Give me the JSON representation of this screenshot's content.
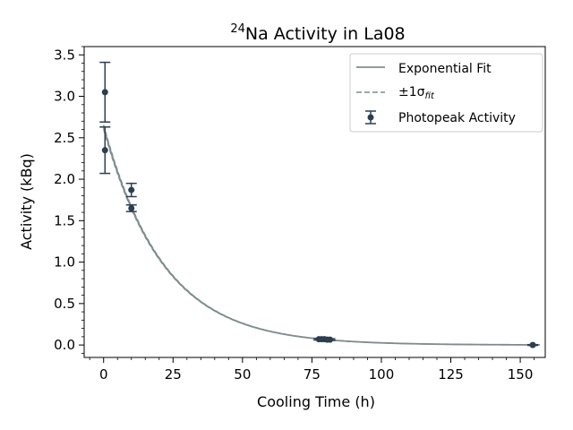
{
  "chart_data": {
    "type": "scatter",
    "title": {
      "superscript": "24",
      "text": "Na Activity in La08"
    },
    "xlabel": "Cooling Time (h)",
    "ylabel": "Activity (kBq)",
    "xlim": [
      -7,
      159
    ],
    "ylim": [
      -0.15,
      3.6
    ],
    "xticks": [
      0,
      25,
      50,
      75,
      100,
      125,
      150
    ],
    "xtick_labels": [
      "0",
      "25",
      "50",
      "75",
      "100",
      "125",
      "150"
    ],
    "yticks": [
      0.0,
      0.5,
      1.0,
      1.5,
      2.0,
      2.5,
      3.0,
      3.5
    ],
    "ytick_labels": [
      "0.0",
      "0.5",
      "1.0",
      "1.5",
      "2.0",
      "2.5",
      "3.0",
      "3.5"
    ],
    "grid": false,
    "legend_position": "top-right",
    "legend": {
      "fit_label": "Exponential Fit",
      "band_label_prefix": "±1σ",
      "band_label_sub": "fit",
      "data_label": "Photopeak Activity"
    },
    "colors": {
      "fit": "#7f8c8d",
      "data": "#2c3e50"
    },
    "fit": {
      "A0": 2.63,
      "half_life_h": 15.0,
      "x_range": [
        0,
        157
      ]
    },
    "data_points": [
      {
        "x": 0.5,
        "y": 3.05,
        "yerr": 0.36
      },
      {
        "x": 0.5,
        "y": 2.35,
        "yerr": 0.28
      },
      {
        "x": 10.0,
        "y": 1.87,
        "yerr": 0.08
      },
      {
        "x": 10.0,
        "y": 1.65,
        "yerr": 0.04
      },
      {
        "x": 77.5,
        "y": 0.07,
        "yerr": 0.01
      },
      {
        "x": 78.5,
        "y": 0.07,
        "yerr": 0.01
      },
      {
        "x": 79.5,
        "y": 0.07,
        "yerr": 0.01
      },
      {
        "x": 80.5,
        "y": 0.065,
        "yerr": 0.01
      },
      {
        "x": 81.5,
        "y": 0.065,
        "yerr": 0.01
      },
      {
        "x": 154.5,
        "y": 0.0,
        "yerr": 0.005
      }
    ]
  }
}
